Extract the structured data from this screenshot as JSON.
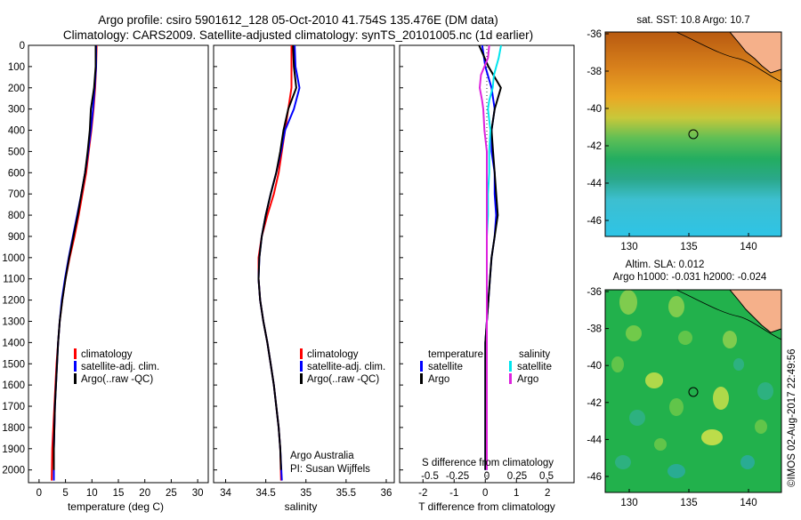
{
  "header": {
    "line1": "Argo profile: csiro 5901612_128 05-Oct-2010 41.754S 135.476E (DM data)",
    "line2": "Climatology: CARS2009. Satellite-adjusted climatology: synTS_20101005.nc (1d earlier)"
  },
  "colors": {
    "climatology": "#ff0000",
    "satellite": "#0000ff",
    "argo": "#000000",
    "sal_satellite": "#00e5ee",
    "sal_argo": "#dd22dd",
    "land": "#f5b08a"
  },
  "depth_axis": {
    "ticks": [
      0,
      100,
      200,
      300,
      400,
      500,
      600,
      700,
      800,
      900,
      1000,
      1100,
      1200,
      1300,
      1400,
      1500,
      1600,
      1700,
      1800,
      1900,
      2000
    ]
  },
  "panels": {
    "temperature": {
      "xlabel": "temperature (deg C)",
      "xticks": [
        0,
        5,
        10,
        15,
        20,
        25,
        30
      ],
      "xlim": [
        -2,
        32
      ],
      "legend": [
        "climatology",
        "satellite-adj. clim.",
        "Argo(..raw -QC)"
      ]
    },
    "salinity": {
      "xlabel": "salinity",
      "xticks": [
        "34",
        "34.5",
        "35",
        "35.5",
        "36"
      ],
      "xlim": [
        33.85,
        36.1
      ],
      "legend": [
        "climatology",
        "satellite-adj. clim.",
        "Argo(..raw -QC)"
      ],
      "note1": "Argo Australia",
      "note2": "PI: Susan Wijffels"
    },
    "difference": {
      "top_label": "S difference from climatology",
      "top_ticks": [
        "-0.5",
        "-0.25",
        "0",
        "0.25",
        "0.5"
      ],
      "xlabel": "T difference from climatology",
      "xticks": [
        "-2",
        "-1",
        "0",
        "1",
        "2"
      ],
      "xlim": [
        -2.75,
        2.85
      ],
      "legend_temp_title": "temperature",
      "legend_sal_title": "salinity",
      "legend_temp": [
        "satellite",
        "Argo"
      ],
      "legend_sal": [
        "satellite",
        "Argo"
      ]
    }
  },
  "maps": {
    "sst": {
      "title": "sat. SST: 10.8 Argo: 10.7",
      "yticks": [
        "-36",
        "-38",
        "-40",
        "-42",
        "-44",
        "-46"
      ],
      "xticks": [
        "130",
        "135",
        "140"
      ]
    },
    "sla": {
      "title1": "Altim. SLA: 0.012",
      "title2": "Argo h1000: -0.031 h2000: -0.024",
      "yticks": [
        "-36",
        "-38",
        "-40",
        "-42",
        "-44",
        "-46"
      ],
      "xticks": [
        "130",
        "135",
        "140"
      ]
    },
    "float_position": {
      "lon": 135.476,
      "lat": -41.754
    }
  },
  "credit": "©IMOS 02-Aug-2017 22:49:56",
  "chart_data": [
    {
      "type": "line",
      "title": "",
      "xlabel": "temperature (deg C)",
      "ylabel": "",
      "xlim": [
        -2,
        32
      ],
      "ylim": [
        2060,
        0
      ],
      "series": [
        {
          "name": "climatology",
          "x": [
            10.9,
            10.8,
            10.6,
            10.3,
            9.9,
            9.4,
            8.9,
            8.2,
            7.5,
            6.7,
            5.8,
            5.0,
            4.4,
            3.9,
            3.6,
            3.3,
            3.1,
            2.9,
            2.7,
            2.5,
            2.4
          ],
          "y": [
            0,
            100,
            200,
            300,
            400,
            500,
            600,
            700,
            800,
            900,
            1000,
            1100,
            1200,
            1300,
            1400,
            1500,
            1600,
            1700,
            1800,
            1900,
            2050
          ]
        },
        {
          "name": "satellite-adj. clim.",
          "x": [
            10.8,
            10.8,
            10.5,
            10.2,
            9.8,
            9.3,
            8.7,
            8.0,
            7.2,
            6.4,
            5.6,
            4.9,
            4.3,
            3.9,
            3.6,
            3.4,
            3.2,
            3.0,
            2.9,
            2.8,
            2.8
          ],
          "y": [
            0,
            100,
            200,
            300,
            400,
            500,
            600,
            700,
            800,
            900,
            1000,
            1100,
            1200,
            1300,
            1400,
            1500,
            1600,
            1700,
            1800,
            1900,
            2050
          ]
        },
        {
          "name": "Argo(..raw -QC)",
          "x": [
            10.7,
            10.7,
            10.4,
            9.8,
            9.6,
            9.2,
            8.7,
            8.0,
            7.3,
            6.5,
            5.7,
            5.0,
            4.4,
            3.9,
            3.6,
            3.4,
            3.2,
            3.0,
            2.9,
            2.8,
            2.8
          ],
          "y": [
            0,
            100,
            200,
            300,
            400,
            500,
            600,
            700,
            800,
            900,
            1000,
            1100,
            1200,
            1300,
            1400,
            1500,
            1600,
            1700,
            1800,
            1900,
            2000
          ]
        }
      ]
    },
    {
      "type": "line",
      "title": "",
      "xlabel": "salinity",
      "ylabel": "",
      "xlim": [
        33.85,
        36.1
      ],
      "ylim": [
        2060,
        0
      ],
      "series": [
        {
          "name": "climatology",
          "x": [
            34.82,
            34.82,
            34.82,
            34.78,
            34.74,
            34.7,
            34.66,
            34.6,
            34.52,
            34.45,
            34.41,
            34.41,
            34.43,
            34.47,
            34.52,
            34.56,
            34.6,
            34.63,
            34.66,
            34.68,
            34.69
          ],
          "y": [
            0,
            100,
            200,
            300,
            400,
            500,
            600,
            700,
            800,
            900,
            1000,
            1100,
            1200,
            1300,
            1400,
            1500,
            1600,
            1700,
            1800,
            1900,
            2050
          ]
        },
        {
          "name": "satellite-adj. clim.",
          "x": [
            34.86,
            34.87,
            34.92,
            34.85,
            34.74,
            34.69,
            34.63,
            34.56,
            34.5,
            34.45,
            34.42,
            34.41,
            34.43,
            34.47,
            34.52,
            34.56,
            34.6,
            34.63,
            34.66,
            34.68,
            34.7
          ],
          "y": [
            0,
            100,
            200,
            300,
            400,
            500,
            600,
            700,
            800,
            900,
            1000,
            1100,
            1200,
            1300,
            1400,
            1500,
            1600,
            1700,
            1800,
            1900,
            2050
          ]
        },
        {
          "name": "Argo(..raw -QC)",
          "x": [
            34.84,
            34.85,
            34.88,
            34.78,
            34.72,
            34.68,
            34.63,
            34.56,
            34.5,
            34.45,
            34.42,
            34.41,
            34.43,
            34.47,
            34.52,
            34.56,
            34.6,
            34.63,
            34.66,
            34.68,
            34.69
          ],
          "y": [
            0,
            100,
            200,
            300,
            400,
            500,
            600,
            700,
            800,
            900,
            1000,
            1100,
            1200,
            1300,
            1400,
            1500,
            1600,
            1700,
            1800,
            1900,
            2000
          ]
        }
      ]
    },
    {
      "type": "line",
      "title": "",
      "xlabel": "T difference from climatology",
      "ylabel": "",
      "xlim": [
        -2.75,
        2.85
      ],
      "ylim": [
        2060,
        0
      ],
      "series": [
        {
          "name": "satellite",
          "x": [
            -0.1,
            0.0,
            0.2,
            0.3,
            0.2,
            0.2,
            0.3,
            0.3,
            0.35,
            0.3,
            0.2,
            0.15,
            0.1,
            0.05,
            0.0,
            0.0,
            0.0,
            0.0,
            0.0,
            0.0,
            0.0
          ],
          "y": [
            0,
            100,
            200,
            300,
            400,
            500,
            600,
            700,
            800,
            900,
            1000,
            1100,
            1200,
            1300,
            1400,
            1500,
            1600,
            1700,
            1800,
            1900,
            2000
          ]
        },
        {
          "name": "Argo",
          "x": [
            -0.2,
            0.1,
            0.5,
            0.3,
            0.2,
            0.25,
            0.3,
            0.35,
            0.4,
            0.3,
            0.2,
            0.15,
            0.1,
            0.05,
            0.0,
            0.0,
            0.0,
            0.0,
            0.0,
            0.0,
            0.0
          ],
          "y": [
            0,
            100,
            200,
            300,
            400,
            500,
            600,
            700,
            800,
            900,
            1000,
            1100,
            1200,
            1300,
            1400,
            1500,
            1600,
            1700,
            1800,
            1900,
            2000
          ]
        }
      ]
    }
  ]
}
